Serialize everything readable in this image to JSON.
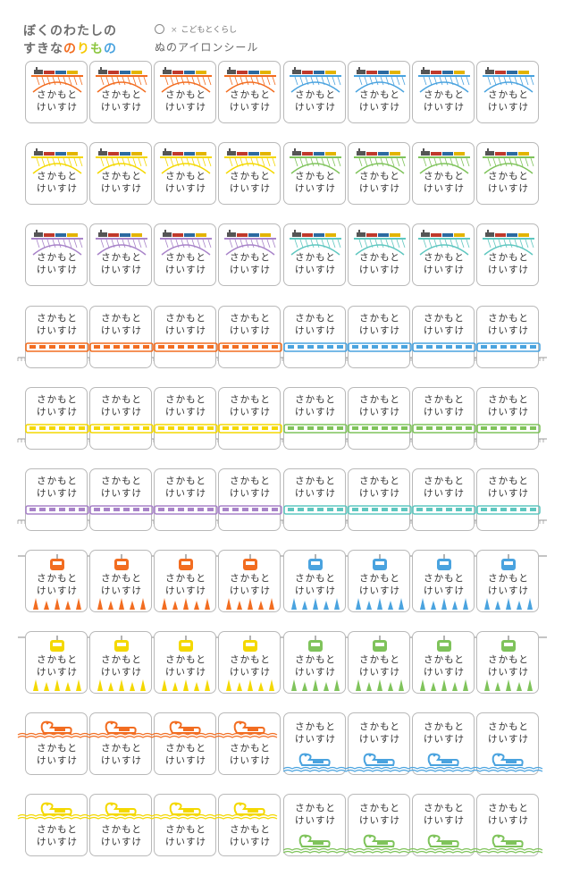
{
  "header": {
    "title_line1": "ぼくのわたしの",
    "title_line2_prefix": "すきな",
    "title_line2_chars": [
      "の",
      "り",
      "も",
      "の"
    ],
    "title_line2_colors": [
      "#f26d21",
      "#f6c800",
      "#8cc63f",
      "#4aa3df"
    ],
    "brand_name": "こどもとくらし",
    "brand_separator": "×",
    "subtitle": "ぬのアイロンシール"
  },
  "label": {
    "name_line1": "さかもと",
    "name_line2": "けいすけ"
  },
  "colors": {
    "orange": "#f26d21",
    "blue": "#4aa3df",
    "yellow": "#f4d800",
    "green": "#7fc35b",
    "purple": "#a883c9",
    "teal": "#5fc7c0",
    "border": "#b9b9b9",
    "track": "#9a9a9a"
  },
  "rows": [
    {
      "motif": "train-bridge",
      "colors": [
        "orange",
        "blue"
      ]
    },
    {
      "motif": "train-bridge",
      "colors": [
        "yellow",
        "green"
      ]
    },
    {
      "motif": "train-bridge",
      "colors": [
        "purple",
        "teal"
      ]
    },
    {
      "motif": "commuter-train",
      "colors": [
        "orange",
        "blue"
      ]
    },
    {
      "motif": "commuter-train",
      "colors": [
        "yellow",
        "green"
      ]
    },
    {
      "motif": "commuter-train",
      "colors": [
        "purple",
        "teal"
      ]
    },
    {
      "motif": "gondola",
      "colors": [
        "orange",
        "blue"
      ]
    },
    {
      "motif": "gondola",
      "colors": [
        "yellow",
        "green"
      ]
    },
    {
      "motif": "swan-boat",
      "colors": [
        "orange",
        "blue"
      ]
    },
    {
      "motif": "swan-boat",
      "colors": [
        "yellow",
        "green"
      ]
    }
  ]
}
